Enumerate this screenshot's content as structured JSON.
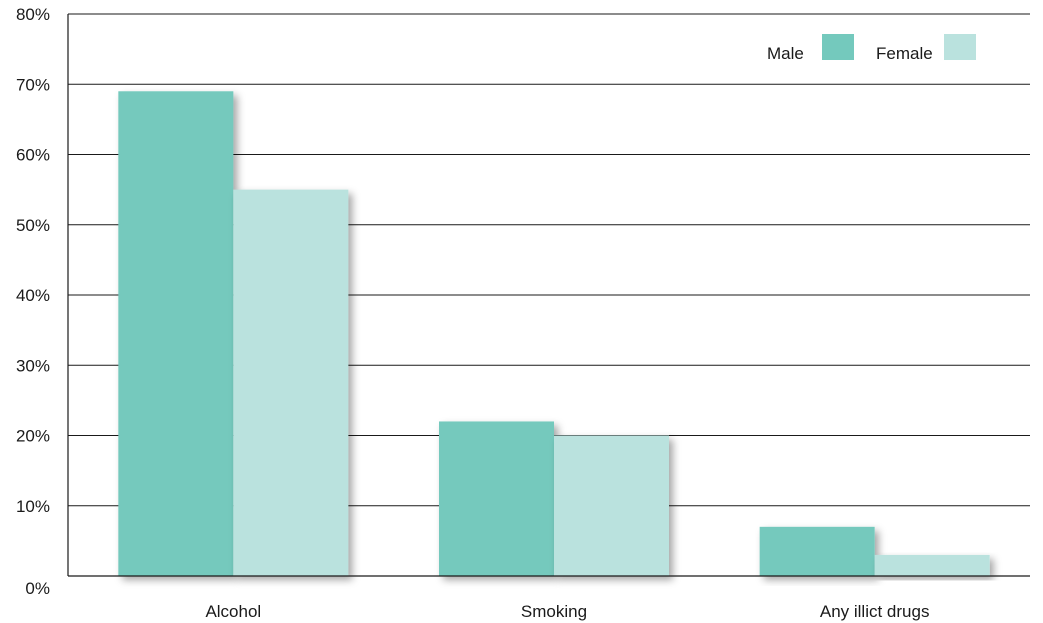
{
  "chart_data": {
    "type": "bar",
    "categories": [
      "Alcohol",
      "Smoking",
      "Any illict drugs"
    ],
    "series": [
      {
        "name": "Male",
        "values": [
          69,
          22,
          7
        ],
        "color": "#74c9bd"
      },
      {
        "name": "Female",
        "values": [
          55,
          20,
          3
        ],
        "color": "#bae2de"
      }
    ],
    "title": "",
    "xlabel": "",
    "ylabel": "",
    "ylim": [
      0,
      80
    ],
    "yticks": [
      {
        "value": 0,
        "label": "0%"
      },
      {
        "value": 10,
        "label": "10%"
      },
      {
        "value": 20,
        "label": "20%"
      },
      {
        "value": 30,
        "label": "30%"
      },
      {
        "value": 40,
        "label": "40%"
      },
      {
        "value": 50,
        "label": "50%"
      },
      {
        "value": 60,
        "label": "60%"
      },
      {
        "value": 70,
        "label": "70%"
      },
      {
        "value": 80,
        "label": "80%"
      }
    ],
    "grid": true,
    "legend_position": "top-right"
  }
}
